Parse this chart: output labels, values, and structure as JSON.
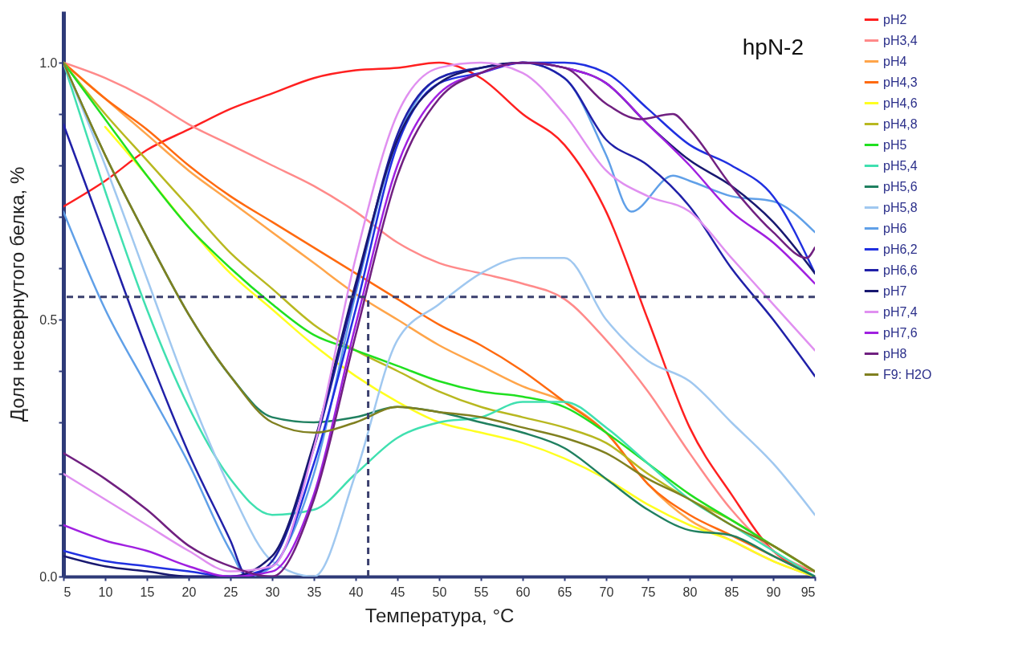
{
  "chart_data": {
    "type": "line",
    "title": "hpN-2",
    "xlabel": "Температура, °C",
    "ylabel": "Доля несвернутого белка, %",
    "x": [
      5,
      10,
      15,
      20,
      25,
      30,
      35,
      40,
      45,
      50,
      55,
      60,
      65,
      70,
      75,
      80,
      85,
      90,
      95
    ],
    "xlim": [
      5,
      95
    ],
    "xticks": [
      5,
      10,
      15,
      20,
      25,
      30,
      35,
      40,
      45,
      50,
      55,
      60,
      65,
      70,
      75,
      80,
      85,
      90,
      95
    ],
    "ylim": [
      0,
      1.1
    ],
    "yticks": [
      {
        "value": 0,
        "label": "0.0"
      },
      {
        "value": 0.1,
        "label": null
      },
      {
        "value": 0.2,
        "label": null
      },
      {
        "value": 0.3,
        "label": null
      },
      {
        "value": 0.4,
        "label": null
      },
      {
        "value": 0.5,
        "label": "0.5"
      },
      {
        "value": 0.6,
        "label": null
      },
      {
        "value": 0.7,
        "label": null
      },
      {
        "value": 0.8,
        "label": null
      },
      {
        "value": 0.9,
        "label": null
      },
      {
        "value": 1,
        "label": "1.0"
      }
    ],
    "grid": false,
    "legend": "right",
    "marker": "none",
    "line_style": "solid",
    "ref_lines": [
      {
        "axis": "y",
        "value": 0.544,
        "color": "#3a3f6e",
        "line_style": "dashed"
      },
      {
        "axis": "x",
        "value": 41.5,
        "color": "#3a3f6e",
        "line_style": "dashed"
      }
    ],
    "series": [
      {
        "name": "pH2",
        "color": "#ff2020",
        "values": [
          0.72,
          0.77,
          0.83,
          0.87,
          0.91,
          0.94,
          0.97,
          0.985,
          0.99,
          1.0,
          0.97,
          0.9,
          0.84,
          0.71,
          0.5,
          0.29,
          0.16,
          0.05,
          0.01
        ]
      },
      {
        "name": "pH3,4",
        "color": "#ff8a8a",
        "values": [
          1.0,
          0.97,
          0.93,
          0.88,
          0.84,
          0.8,
          0.76,
          0.71,
          0.65,
          0.61,
          0.59,
          0.57,
          0.54,
          0.46,
          0.36,
          0.24,
          0.13,
          0.05,
          0.01
        ]
      },
      {
        "name": "pH4",
        "color": "#ffa54a",
        "values": [
          1.0,
          0.93,
          0.86,
          0.79,
          0.73,
          0.67,
          0.61,
          0.55,
          0.5,
          0.45,
          0.41,
          0.37,
          0.34,
          0.28,
          0.18,
          0.11,
          0.07,
          0.03,
          0.0
        ]
      },
      {
        "name": "pH4,3",
        "color": "#ff6a10",
        "values": [
          1.0,
          0.93,
          0.87,
          0.8,
          0.74,
          0.69,
          0.64,
          0.59,
          0.54,
          0.49,
          0.45,
          0.4,
          0.34,
          0.28,
          0.18,
          0.12,
          0.08,
          0.04,
          0.0
        ]
      },
      {
        "name": "pH4,6",
        "color": "#ffff20",
        "values": [
          null,
          0.875,
          0.78,
          0.68,
          0.59,
          0.52,
          0.45,
          0.39,
          0.34,
          0.3,
          0.28,
          0.26,
          0.23,
          0.19,
          0.14,
          0.1,
          0.07,
          0.03,
          0.0
        ]
      },
      {
        "name": "pH4,8",
        "color": "#b8b820",
        "values": [
          1.0,
          0.9,
          0.81,
          0.72,
          0.63,
          0.56,
          0.49,
          0.44,
          0.4,
          0.36,
          0.33,
          0.31,
          0.29,
          0.26,
          0.2,
          0.15,
          0.11,
          0.06,
          0.01
        ]
      },
      {
        "name": "pH5",
        "color": "#20e020",
        "values": [
          1.0,
          0.89,
          0.78,
          0.68,
          0.6,
          0.53,
          0.47,
          0.44,
          0.41,
          0.38,
          0.36,
          0.35,
          0.33,
          0.28,
          0.22,
          0.16,
          0.11,
          0.06,
          0.01
        ]
      },
      {
        "name": "pH5,4",
        "color": "#40e0b0",
        "values": [
          1.0,
          0.75,
          0.52,
          0.33,
          0.19,
          0.12,
          0.13,
          0.2,
          0.27,
          0.3,
          0.31,
          0.34,
          0.34,
          0.29,
          0.22,
          0.15,
          0.1,
          0.05,
          0.0
        ]
      },
      {
        "name": "pH5,6",
        "color": "#208060",
        "values": [
          1.0,
          0.82,
          0.66,
          0.51,
          0.39,
          0.31,
          0.3,
          0.31,
          0.33,
          0.32,
          0.3,
          0.28,
          0.25,
          0.19,
          0.13,
          0.09,
          0.08,
          0.04,
          0.0
        ]
      },
      {
        "name": "pH5,8",
        "color": "#a0c8f0",
        "values": [
          1.0,
          0.8,
          0.58,
          0.36,
          0.17,
          0.03,
          0.0,
          0.2,
          0.46,
          0.53,
          0.59,
          0.62,
          0.62,
          0.5,
          0.42,
          0.38,
          0.3,
          0.22,
          0.12
        ]
      },
      {
        "name": "pH6",
        "color": "#60a0e8",
        "x": [
          5,
          10,
          15,
          20,
          25,
          27,
          30,
          35,
          40,
          45,
          50,
          55,
          60,
          65,
          70,
          73,
          78,
          80,
          85,
          90,
          95
        ],
        "values": [
          0.71,
          0.52,
          0.37,
          0.22,
          0.05,
          0.0,
          0.02,
          0.2,
          0.55,
          0.85,
          0.97,
          0.99,
          1.0,
          0.97,
          0.82,
          0.71,
          0.78,
          0.77,
          0.74,
          0.73,
          0.67
        ]
      },
      {
        "name": "pH6,2",
        "color": "#2030e0",
        "values": [
          0.05,
          0.03,
          0.02,
          0.01,
          0.0,
          0.02,
          0.22,
          0.52,
          0.84,
          0.96,
          0.98,
          1.0,
          1.0,
          0.98,
          0.91,
          0.84,
          0.8,
          0.74,
          0.59
        ]
      },
      {
        "name": "pH6,6",
        "color": "#2020a8",
        "x": [
          5,
          10,
          15,
          20,
          25,
          27,
          30,
          35,
          40,
          45,
          50,
          55,
          60,
          65,
          70,
          75,
          80,
          85,
          90,
          95
        ],
        "values": [
          0.88,
          0.66,
          0.44,
          0.24,
          0.07,
          0.0,
          0.03,
          0.25,
          0.56,
          0.86,
          0.97,
          0.99,
          1.0,
          0.97,
          0.85,
          0.8,
          0.72,
          0.6,
          0.5,
          0.39
        ]
      },
      {
        "name": "pH7",
        "color": "#181870",
        "values": [
          0.04,
          0.02,
          0.01,
          0.0,
          0.0,
          0.04,
          0.26,
          0.57,
          0.85,
          0.96,
          0.99,
          1.0,
          0.99,
          0.96,
          0.88,
          0.81,
          0.76,
          0.69,
          0.59
        ]
      },
      {
        "name": "pH7,4",
        "color": "#e090f0",
        "values": [
          0.2,
          0.15,
          0.1,
          0.05,
          0.01,
          0.02,
          0.25,
          0.62,
          0.9,
          0.99,
          1.0,
          0.98,
          0.9,
          0.79,
          0.74,
          0.71,
          0.62,
          0.53,
          0.44
        ]
      },
      {
        "name": "pH7,6",
        "color": "#a020e0",
        "values": [
          0.1,
          0.07,
          0.05,
          0.02,
          0.0,
          0.01,
          0.16,
          0.49,
          0.8,
          0.94,
          0.98,
          1.0,
          0.99,
          0.96,
          0.88,
          0.8,
          0.71,
          0.65,
          0.57
        ]
      },
      {
        "name": "pH8",
        "color": "#702080",
        "x": [
          5,
          10,
          15,
          20,
          25,
          30,
          35,
          40,
          45,
          50,
          55,
          60,
          65,
          70,
          74,
          78,
          80,
          85,
          90,
          94,
          95
        ],
        "values": [
          0.24,
          0.19,
          0.13,
          0.06,
          0.02,
          0.0,
          0.15,
          0.47,
          0.78,
          0.93,
          0.98,
          1.0,
          0.99,
          0.92,
          0.89,
          0.9,
          0.87,
          0.76,
          0.67,
          0.62,
          0.64
        ]
      },
      {
        "name": "F9: H2O",
        "color": "#808020",
        "values": [
          1.0,
          0.82,
          0.66,
          0.51,
          0.39,
          0.3,
          0.28,
          0.3,
          0.33,
          0.32,
          0.31,
          0.29,
          0.27,
          0.24,
          0.19,
          0.15,
          0.1,
          0.06,
          0.01
        ]
      }
    ]
  }
}
